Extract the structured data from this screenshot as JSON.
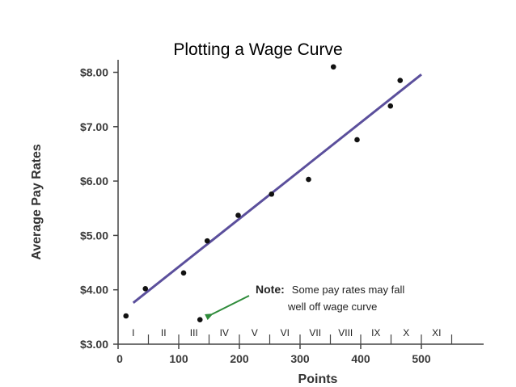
{
  "chart_data": {
    "type": "scatter",
    "title": "Plotting a Wage Curve",
    "xlabel": "Points",
    "ylabel": "Average Pay Rates",
    "xlim": [
      0,
      600
    ],
    "ylim": [
      3.0,
      8.4
    ],
    "x_ticks": [
      0,
      100,
      200,
      300,
      400,
      500
    ],
    "x_tick_labels": [
      "0",
      "100",
      "200",
      "300",
      "400",
      "500"
    ],
    "y_ticks": [
      3.0,
      4.0,
      5.0,
      6.0,
      7.0,
      8.0
    ],
    "y_tick_labels": [
      "$3.00",
      "$4.00",
      "$5.00",
      "$6.00",
      "$7.00",
      "$8.00"
    ],
    "grades": [
      "I",
      "II",
      "III",
      "IV",
      "V",
      "VI",
      "VII",
      "VIII",
      "IX",
      "X",
      "XI"
    ],
    "grade_boundaries": [
      50,
      100,
      150,
      200,
      250,
      300,
      350,
      400,
      450,
      500,
      550
    ],
    "series": [
      {
        "x": [
          13,
          45,
          108,
          147,
          198,
          253,
          314,
          355,
          394,
          449,
          465
        ],
        "y": [
          3.52,
          4.02,
          4.31,
          4.9,
          5.37,
          5.76,
          6.03,
          8.1,
          6.76,
          7.38,
          7.85
        ],
        "color": "#111111"
      }
    ],
    "trend_line": {
      "x": [
        25,
        500
      ],
      "y": [
        3.76,
        7.96
      ],
      "color": "#5b4f9c"
    },
    "annotation": {
      "bold": "Note:",
      "line1": "Some pay rates may fall",
      "line2": "well off wage curve",
      "target_point": {
        "x": 135,
        "y": 3.45
      },
      "arrow_color": "#2e8b3a"
    },
    "grid": false
  }
}
